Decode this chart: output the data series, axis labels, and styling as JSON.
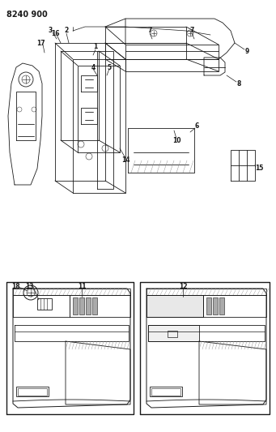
{
  "title": "8240 900",
  "bg_color": "#f5f5f0",
  "line_color": "#1a1a1a",
  "fig_width": 3.41,
  "fig_height": 5.33,
  "dpi": 100
}
